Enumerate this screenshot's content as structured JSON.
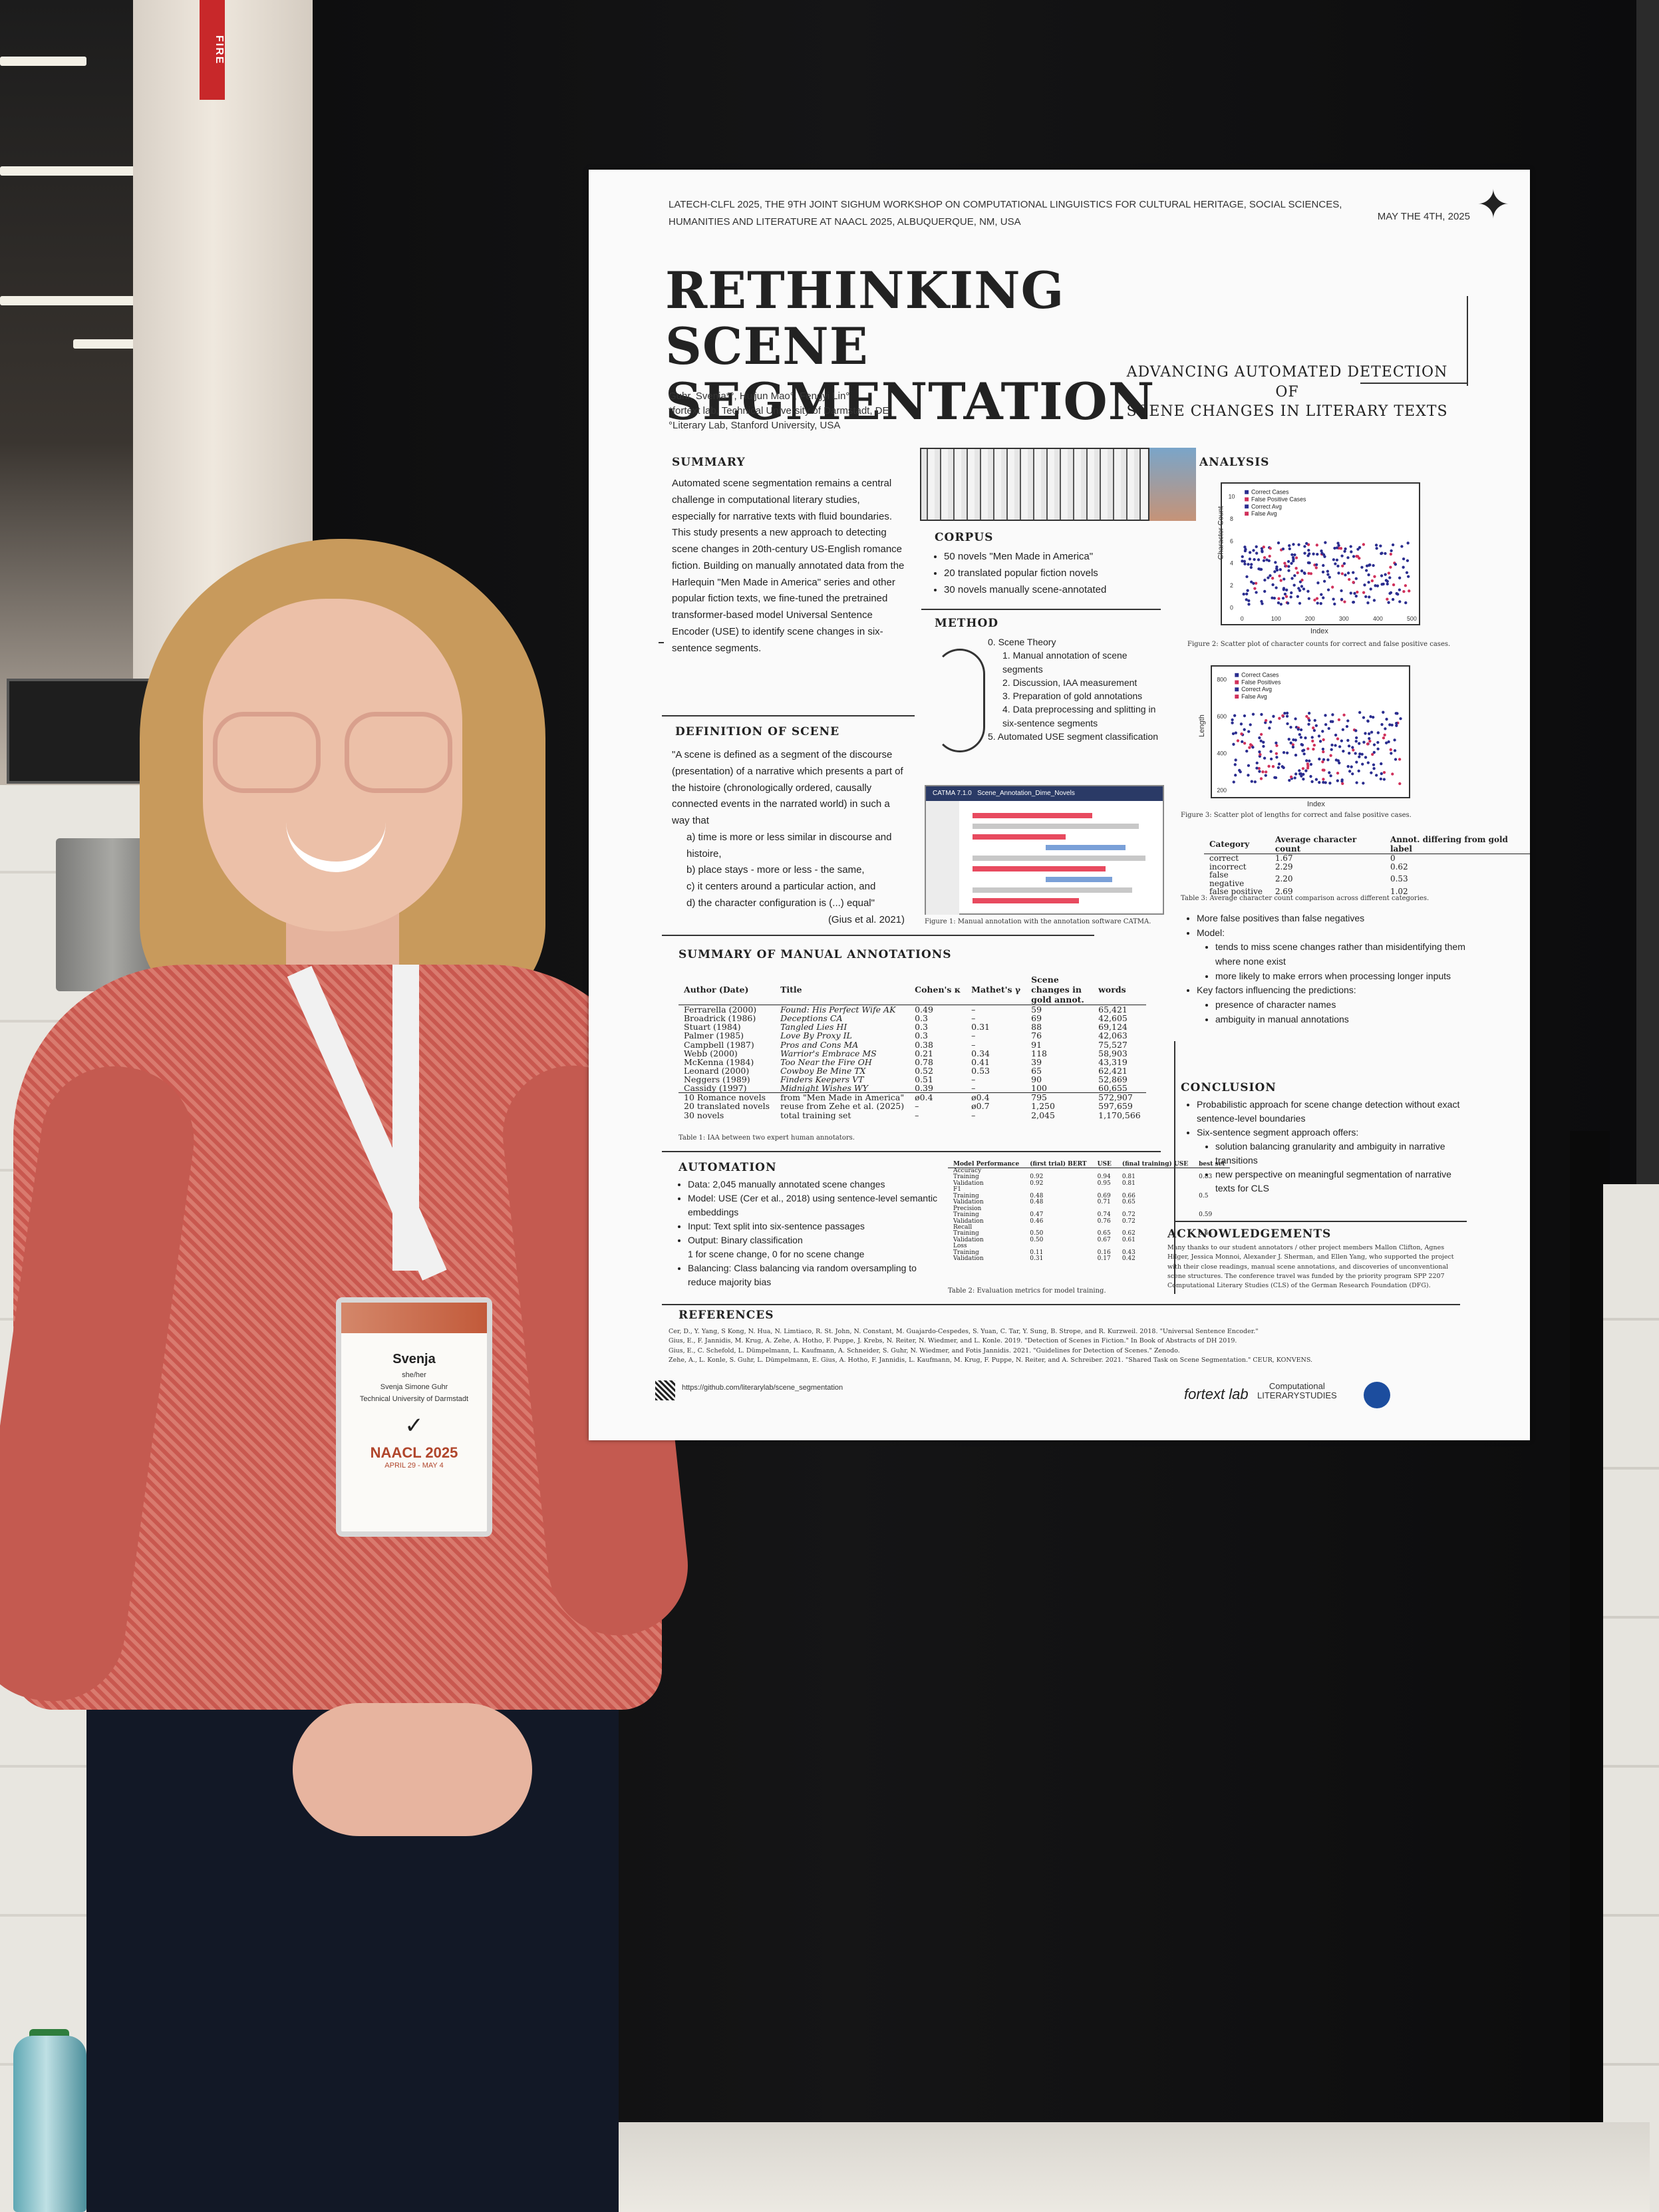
{
  "scene": {
    "fire_sign": "FIRE",
    "colors": {
      "board": "#111112",
      "shirt": "#c9584f",
      "hair": "#c89a5c",
      "poster": "#fafafa"
    }
  },
  "badge": {
    "name": "Svenja",
    "pronouns": "she/her",
    "full_name": "Svenja Simone Guhr",
    "affiliation": "Technical University of Darmstadt",
    "checkmark": "✓",
    "conference": "NAACL 2025",
    "dates": "APRIL 29 - MAY 4"
  },
  "poster": {
    "header_line1": "LATECH-CLFL 2025, THE 9TH JOINT SIGHUM WORKSHOP ON COMPUTATIONAL LINGUISTICS FOR CULTURAL HERITAGE, SOCIAL SCIENCES,",
    "header_line2": "HUMANITIES AND LITERATURE AT NAACL 2025, ALBUQUERQUE, NM, USA",
    "date": "MAY THE 4TH, 2025",
    "title_line1": "RETHINKING SCENE",
    "title_line2": "SEGMENTATION",
    "subtitle_line1": "ADVANCING AUTOMATED DETECTION OF",
    "subtitle_line2": "SCENE CHANGES IN LITERARY TEXTS",
    "authors_line1": "Guhr, Svenja*°, Huijun Mao°, Fengyi Lin°",
    "authors_line2": "*fortext lab, Technical University of Darmstadt, DE",
    "authors_line3": "°Literary Lab, Stanford University, USA",
    "summary": {
      "heading": "SUMMARY",
      "text": "Automated scene segmentation remains a central challenge in computational literary studies, especially for narrative texts with fluid boundaries. This study presents a new approach to detecting scene changes in 20th-century US-English romance fiction. Building on manually annotated data from the Harlequin \"Men Made in America\" series and other popular fiction texts, we fine-tuned the pretrained transformer-based model Universal Sentence Encoder (USE) to identify scene changes in six-sentence segments."
    },
    "definition": {
      "heading": "DEFINITION OF SCENE",
      "intro": "\"A scene is defined as a segment of the discourse (presentation) of a narrative which presents a part of the histoire (chronologically ordered, causally connected events in the narrated world) in such a way that",
      "items": [
        "a) time is more or less similar in discourse and histoire,",
        "b) place stays - more or less - the same,",
        "c) it centers around a particular action, and",
        "d) the character configuration is (...) equal\""
      ],
      "cite": "(Gius et al. 2021)"
    },
    "corpus": {
      "heading": "CORPUS",
      "items": [
        "50 novels \"Men Made in America\"",
        "20 translated popular fiction novels",
        "30 novels manually scene-annotated"
      ]
    },
    "method": {
      "heading": "METHOD",
      "items": [
        "0. Scene Theory",
        "1. Manual annotation of scene segments",
        "2. Discussion, IAA measurement",
        "3. Preparation of gold annotations",
        "4. Data preprocessing and splitting in six-sentence segments",
        "5. Automated USE segment classification"
      ],
      "catma_title": "CATMA 7.1.0",
      "catma_doc": "Scene_Annotation_Dime_Novels",
      "figure_caption": "Figure 1: Manual annotation with the annotation software CATMA."
    },
    "analysis": {
      "heading": "ANALYSIS",
      "fig2_legend": [
        "Correct Cases",
        "False Positive Cases",
        "Correct Avg",
        "False Avg"
      ],
      "fig2_ylabel": "Character Count",
      "fig2_xlabel": "Index",
      "fig2_xticks": [
        "0",
        "100",
        "200",
        "300",
        "400",
        "500"
      ],
      "fig2_yticks": [
        "0",
        "2",
        "4",
        "6",
        "8",
        "10"
      ],
      "fig2_caption": "Figure 2: Scatter plot of character counts for correct and false positive cases.",
      "fig3_legend": [
        "Correct Cases",
        "False Positives",
        "Correct Avg",
        "False Avg"
      ],
      "fig3_ylabel": "Length",
      "fig3_xlabel": "Index",
      "fig3_xticks": [
        "0",
        "100",
        "200",
        "300",
        "400",
        "500"
      ],
      "fig3_yticks": [
        "200",
        "400",
        "600",
        "800"
      ],
      "fig3_caption": "Figure 3: Scatter plot of lengths for correct and false positive cases.",
      "table3_headers": [
        "Category",
        "Average character count",
        "Annot. differing from gold label"
      ],
      "table3_rows": [
        [
          "correct",
          "1.67",
          "0"
        ],
        [
          "incorrect",
          "2.29",
          "0.62"
        ],
        [
          "false negative",
          "2.20",
          "0.53"
        ],
        [
          "false positive",
          "2.69",
          "1.02"
        ]
      ],
      "table3_caption": "Table 3: Average character count comparison across different categories.",
      "bullets": [
        "More false positives than false negatives",
        "Model:",
        "tends to miss scene changes rather than misidentifying them where none exist",
        "more likely to make errors when processing longer inputs",
        "Key factors influencing the predictions:",
        "presence of character names",
        "ambiguity in manual annotations"
      ]
    },
    "annotations": {
      "heading": "SUMMARY OF MANUAL ANNOTATIONS",
      "headers": [
        "Author (Date)",
        "Title",
        "Cohen's κ",
        "Mathet's γ",
        "Scene changes in gold annot.",
        "words"
      ],
      "rows": [
        [
          "Ferrarella (2000)",
          "Found: His Perfect Wife AK",
          "0.49",
          "–",
          "59",
          "65,421"
        ],
        [
          "Broadrick (1986)",
          "Deceptions CA",
          "0.3",
          "–",
          "69",
          "42,605"
        ],
        [
          "Stuart (1984)",
          "Tangled Lies HI",
          "0.3",
          "0.31",
          "88",
          "69,124"
        ],
        [
          "Palmer (1985)",
          "Love By Proxy IL",
          "0.3",
          "–",
          "76",
          "42,063"
        ],
        [
          "Campbell (1987)",
          "Pros and Cons MA",
          "0.38",
          "–",
          "91",
          "75,527"
        ],
        [
          "Webb (2000)",
          "Warrior's Embrace MS",
          "0.21",
          "0.34",
          "118",
          "58,903"
        ],
        [
          "McKenna (1984)",
          "Too Near the Fire OH",
          "0.78",
          "0.41",
          "39",
          "43,319"
        ],
        [
          "Leonard (2000)",
          "Cowboy Be Mine TX",
          "0.52",
          "0.53",
          "65",
          "62,421"
        ],
        [
          "Neggers (1989)",
          "Finders Keepers VT",
          "0.51",
          "–",
          "90",
          "52,869"
        ],
        [
          "Cassidy (1997)",
          "Midnight Wishes WY",
          "0.39",
          "–",
          "100",
          "60,655"
        ]
      ],
      "summary_rows": [
        [
          "10 Romance novels",
          "from \"Men Made in America\"",
          "ø0.4",
          "ø0.4",
          "795",
          "572,907"
        ],
        [
          "20 translated novels",
          "reuse from Zehe et al. (2025)",
          "–",
          "ø0.7",
          "1,250",
          "597,659"
        ],
        [
          "30 novels",
          "total training set",
          "–",
          "–",
          "2,045",
          "1,170,566"
        ]
      ],
      "caption": "Table 1: IAA between two expert human annotators."
    },
    "automation": {
      "heading": "AUTOMATION",
      "items": [
        "Data: 2,045 manually annotated scene changes",
        "Model: USE (Cer et al., 2018) using sentence-level semantic embeddings",
        "Input: Text split into six-sentence passages",
        "Output: Binary classification",
        "1 for scene change, 0 for no scene change",
        "Balancing: Class balancing via random oversampling to reduce majority bias"
      ],
      "table2_headers": [
        "Model Performance",
        "(first trial) BERT",
        "USE",
        "(final training) USE",
        "best set"
      ],
      "table2_rows": [
        [
          "Accuracy",
          "",
          "",
          "",
          ""
        ],
        [
          "Training",
          "0.92",
          "0.94",
          "0.81",
          "0.83"
        ],
        [
          "Validation",
          "0.92",
          "0.95",
          "0.81",
          ""
        ],
        [
          "F1",
          "",
          "",
          "",
          ""
        ],
        [
          "Training",
          "0.48",
          "0.69",
          "0.66",
          "0.5"
        ],
        [
          "Validation",
          "0.48",
          "0.71",
          "0.65",
          ""
        ],
        [
          "Precision",
          "",
          "",
          "",
          ""
        ],
        [
          "Training",
          "0.47",
          "0.74",
          "0.72",
          "0.59"
        ],
        [
          "Validation",
          "0.46",
          "0.76",
          "0.72",
          ""
        ],
        [
          "Recall",
          "",
          "",
          "",
          ""
        ],
        [
          "Training",
          "0.50",
          "0.65",
          "0.62",
          "0.44"
        ],
        [
          "Validation",
          "0.50",
          "0.67",
          "0.61",
          ""
        ],
        [
          "Loss",
          "",
          "",
          "",
          ""
        ],
        [
          "Training",
          "0.11",
          "0.16",
          "0.43",
          ""
        ],
        [
          "Validation",
          "0.31",
          "0.17",
          "0.42",
          ""
        ]
      ],
      "table2_caption": "Table 2: Evaluation metrics for model training."
    },
    "conclusion": {
      "heading": "CONCLUSION",
      "items": [
        "Probabilistic approach for scene change detection without exact sentence-level boundaries",
        "Six-sentence segment approach offers:",
        "solution balancing granularity and ambiguity in narrative transitions",
        "new perspective on meaningful segmentation of narrative texts for CLS"
      ]
    },
    "acknowledgements": {
      "heading": "ACKNOWLEDGEMENTS",
      "text": "Many thanks to our student annotators / other project members Mallon Clifton, Agnes Hilger, Jessica Monnoi, Alexander J. Sherman, and Ellen Yang, who supported the project with their close readings, manual scene annotations, and discoveries of unconventional scene structures. The conference travel was funded by the priority program SPP 2207 Computational Literary Studies (CLS) of the German Research Foundation (DFG)."
    },
    "references": {
      "heading": "REFERENCES",
      "lines": [
        "Cer, D., Y. Yang, S Kong, N. Hua, N. Limtiaco, R. St. John, N. Constant, M. Guajardo-Cespedes, S. Yuan, C. Tar, Y. Sung, B. Strope, and R. Kurzweil. 2018. \"Universal Sentence Encoder.\"",
        "Gius, E., F. Jannidis, M. Krug, A. Zehe, A. Hotho, F. Puppe, J. Krebs, N. Reiter, N. Wiedmer, and L. Konle. 2019. \"Detection of Scenes in Fiction.\" In Book of Abstracts of DH 2019.",
        "Gius, E., C. Schefold, L. Dümpelmann, L. Kaufmann, A. Schneider, S. Guhr, N. Wiedmer, and Fotis Jannidis. 2021. \"Guidelines for Detection of Scenes.\" Zenodo.",
        "Zehe, A., L. Konle, S. Guhr, L. Dümpelmann, E. Gius, A. Hotho, F. Jannidis, L. Kaufmann, M. Krug, F. Puppe, N. Reiter, and A. Schreiber. 2021. \"Shared Task on Scene Segmentation.\" CEUR, KONVENS."
      ],
      "url": "https://github.com/literarylab/scene_segmentation"
    },
    "logos": {
      "fortext": "fortext lab",
      "cls_line1": "Computational",
      "cls_line2": "LITERARYSTUDIES"
    }
  }
}
